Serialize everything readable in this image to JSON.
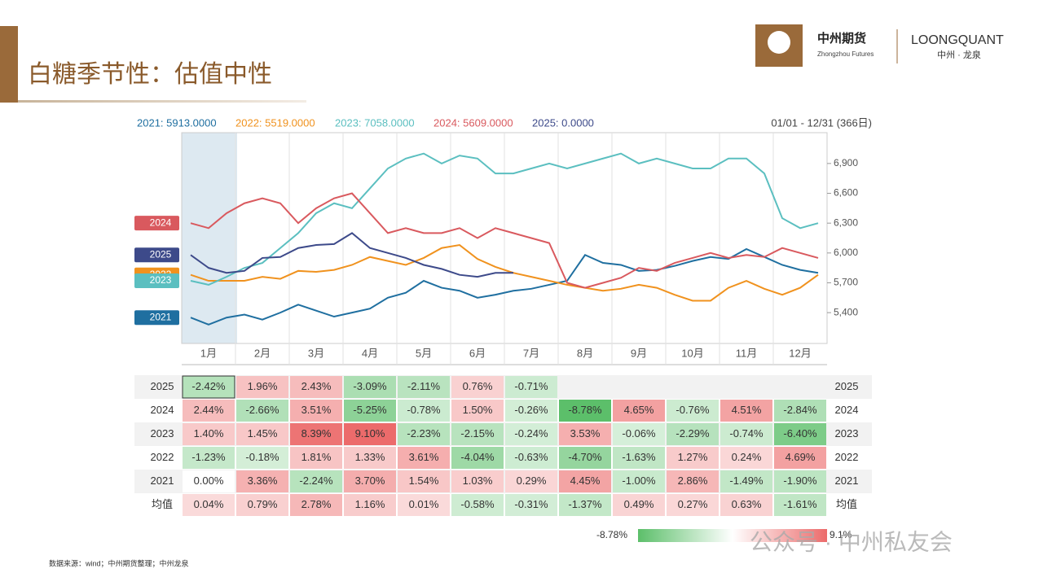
{
  "header": {
    "title": "白糖季节性：估值中性",
    "logo_cn": "中州期货",
    "logo_en": "Zhongzhou Futures",
    "brand": "LOONGQUANT",
    "brand_sub": "中州 · 龙泉"
  },
  "chart_data": {
    "type": "line",
    "range_label": "01/01 - 12/31 (366日)",
    "legend_labels": [
      "2021: 5913.0000",
      "2022: 5519.0000",
      "2023: 7058.0000",
      "2024: 5609.0000",
      "2025: 0.0000"
    ],
    "categories": [
      null,
      "1月",
      null,
      null,
      "2月",
      null,
      null,
      "3月",
      null,
      null,
      "4月",
      null,
      null,
      "5月",
      null,
      null,
      "6月",
      null,
      null,
      "7月",
      null,
      null,
      "8月",
      null,
      null,
      "9月",
      null,
      null,
      "10月",
      null,
      null,
      "11月",
      null,
      null,
      "12月",
      null
    ],
    "ylim": [
      5090,
      7210
    ],
    "yticks": [
      {
        "value": 5400,
        "label": "5,400"
      },
      {
        "value": 5700,
        "label": "5,700"
      },
      {
        "value": 6000,
        "label": "6,000"
      },
      {
        "value": 6300,
        "label": "6,300"
      },
      {
        "value": 6600,
        "label": "6,600"
      },
      {
        "value": 6900,
        "label": "6,900"
      }
    ],
    "series": [
      {
        "name": "2021",
        "color": "#1f6fa0",
        "values": [
          5350,
          5280,
          5350,
          5380,
          5330,
          5400,
          5480,
          5420,
          5360,
          5400,
          5440,
          5550,
          5600,
          5720,
          5650,
          5620,
          5550,
          5580,
          5620,
          5640,
          5680,
          5720,
          5980,
          5900,
          5880,
          5820,
          5830,
          5870,
          5920,
          5960,
          5940,
          6040,
          5960,
          5880,
          5830,
          5800
        ]
      },
      {
        "name": "2022",
        "color": "#f0921e",
        "values": [
          5780,
          5720,
          5720,
          5720,
          5760,
          5740,
          5820,
          5810,
          5830,
          5880,
          5960,
          5920,
          5880,
          5950,
          6050,
          6080,
          5940,
          5860,
          5800,
          5760,
          5720,
          5680,
          5650,
          5620,
          5640,
          5680,
          5650,
          5580,
          5520,
          5520,
          5650,
          5720,
          5640,
          5580,
          5650,
          5780
        ]
      },
      {
        "name": "2023",
        "color": "#5bbfc0",
        "values": [
          5720,
          5680,
          5760,
          5850,
          5900,
          6050,
          6200,
          6400,
          6500,
          6450,
          6650,
          6850,
          6950,
          7000,
          6900,
          6980,
          6950,
          6800,
          6800,
          6850,
          6900,
          6850,
          6900,
          6950,
          7000,
          6900,
          6950,
          6900,
          6850,
          6850,
          6950,
          6950,
          6800,
          6350,
          6250,
          6300
        ]
      },
      {
        "name": "2024",
        "color": "#d9595e",
        "values": [
          6300,
          6250,
          6400,
          6500,
          6550,
          6500,
          6300,
          6450,
          6550,
          6600,
          6400,
          6200,
          6250,
          6200,
          6200,
          6250,
          6150,
          6250,
          6200,
          6150,
          6100,
          5700,
          5650,
          5700,
          5750,
          5850,
          5820,
          5900,
          5950,
          6000,
          5950,
          5980,
          5960,
          6050,
          6000,
          5950
        ]
      },
      {
        "name": "2025",
        "color": "#3d4a8a",
        "values": [
          5980,
          5850,
          5800,
          5820,
          5950,
          5960,
          6050,
          6080,
          6090,
          6200,
          6050,
          6000,
          5950,
          5880,
          5840,
          5780,
          5760,
          5800,
          5800,
          null,
          null,
          null,
          null,
          null,
          null,
          null,
          null,
          null,
          null,
          null,
          null,
          null,
          null,
          null,
          null,
          null
        ]
      }
    ]
  },
  "table": {
    "rows": [
      [
        "2025",
        "-2.42%",
        "1.96%",
        "2.43%",
        "-3.09%",
        "-2.11%",
        "0.76%",
        "-0.71%",
        null,
        null,
        null,
        null,
        null
      ],
      [
        "2024",
        "2.44%",
        "-2.66%",
        "3.51%",
        "-5.25%",
        "-0.78%",
        "1.50%",
        "-0.26%",
        "-8.78%",
        "4.65%",
        "-0.76%",
        "4.51%",
        "-2.84%"
      ],
      [
        "2023",
        "1.40%",
        "1.45%",
        "8.39%",
        "9.10%",
        "-2.23%",
        "-2.15%",
        "-0.24%",
        "3.53%",
        "-0.06%",
        "-2.29%",
        "-0.74%",
        "-6.40%"
      ],
      [
        "2022",
        "-1.23%",
        "-0.18%",
        "1.81%",
        "1.33%",
        "3.61%",
        "-4.04%",
        "-0.63%",
        "-4.70%",
        "-1.63%",
        "1.27%",
        "0.24%",
        "4.69%"
      ],
      [
        "2021",
        "0.00%",
        "3.36%",
        "-2.24%",
        "3.70%",
        "1.54%",
        "1.03%",
        "0.29%",
        "4.45%",
        "-1.00%",
        "2.86%",
        "-1.49%",
        "-1.90%"
      ],
      [
        "均值",
        "0.04%",
        "0.79%",
        "2.78%",
        "1.16%",
        "0.01%",
        "-0.58%",
        "-0.31%",
        "-1.37%",
        "0.49%",
        "0.27%",
        "0.63%",
        "-1.61%"
      ]
    ],
    "scale_min": "-8.78%",
    "scale_max": "9.1%"
  },
  "footer": {
    "source": "数据来源：wind；中州期货整理；中州龙泉",
    "watermark": "公众号 · 中州私友会"
  }
}
